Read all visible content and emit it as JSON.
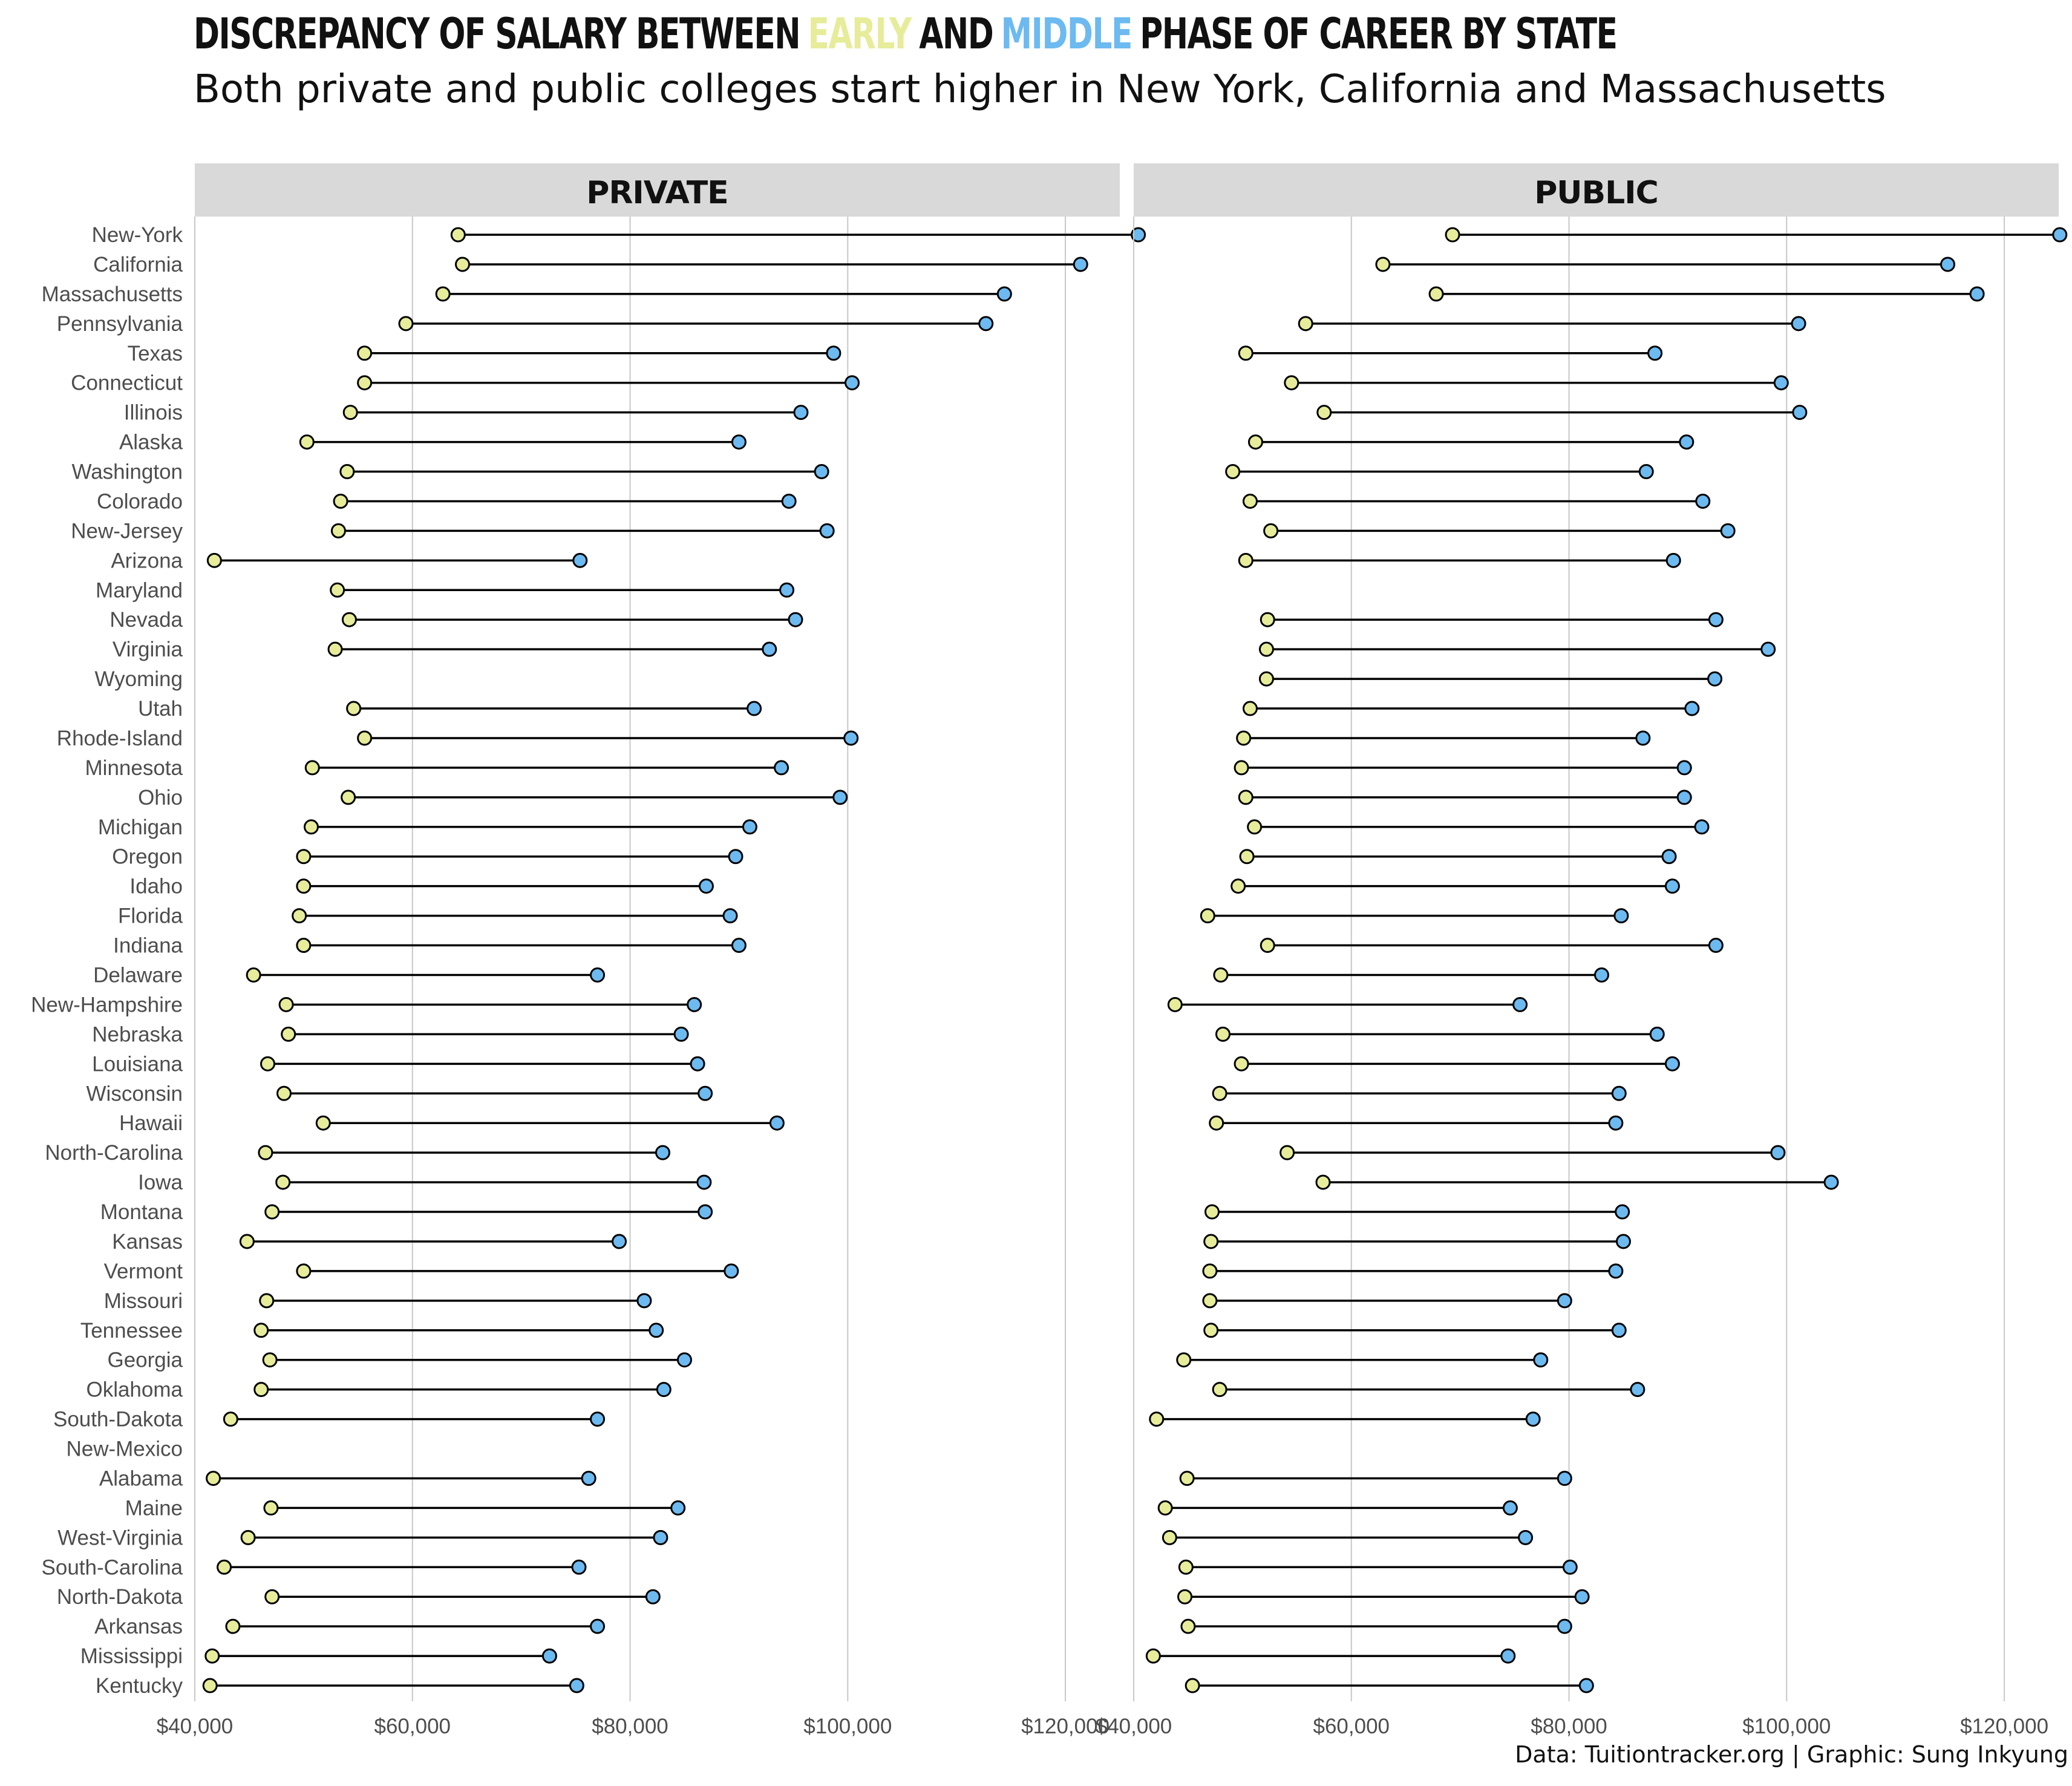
{
  "title_segments": [
    {
      "text": "DISCREPANCY OF SALARY BETWEEN",
      "color": "#111111"
    },
    {
      "text": "EARLY",
      "color": "#e6ec9a"
    },
    {
      "text": "AND",
      "color": "#111111"
    },
    {
      "text": "MIDDLE",
      "color": "#6cbaf0"
    },
    {
      "text": "PHASE OF CAREER BY STATE",
      "color": "#111111"
    }
  ],
  "subtitle": "Both private and public colleges start higher in New York, California and Massachusetts",
  "caption": "Data: Tuitiontracker.org | Graphic: Sung Inkyung",
  "colors": {
    "early": "#e6ec9a",
    "middle": "#6cbaf0",
    "line": "#000000",
    "panel_header": "#d9d9d9",
    "grid": "#c8c8c8",
    "axis_text": "#4d4d4d"
  },
  "chart_data": {
    "type": "dumbbell",
    "states": [
      "New-York",
      "California",
      "Massachusetts",
      "Pennsylvania",
      "Texas",
      "Connecticut",
      "Illinois",
      "Alaska",
      "Washington",
      "Colorado",
      "New-Jersey",
      "Arizona",
      "Maryland",
      "Nevada",
      "Virginia",
      "Wyoming",
      "Utah",
      "Rhode-Island",
      "Minnesota",
      "Ohio",
      "Michigan",
      "Oregon",
      "Idaho",
      "Florida",
      "Indiana",
      "Delaware",
      "New-Hampshire",
      "Nebraska",
      "Louisiana",
      "Wisconsin",
      "Hawaii",
      "North-Carolina",
      "Iowa",
      "Montana",
      "Kansas",
      "Vermont",
      "Missouri",
      "Tennessee",
      "Georgia",
      "Oklahoma",
      "South-Dakota",
      "New-Mexico",
      "Alabama",
      "Maine",
      "West-Virginia",
      "South-Carolina",
      "North-Dakota",
      "Arkansas",
      "Mississippi",
      "Kentucky"
    ],
    "xlim": [
      40000,
      125000
    ],
    "x_ticks": [
      40000,
      60000,
      80000,
      100000,
      120000
    ],
    "x_tick_labels": [
      "$40,000",
      "$60,000",
      "$80,000",
      "$100,000",
      "$120,000"
    ],
    "grid": true,
    "panels": [
      {
        "name": "PRIVATE",
        "early": [
          64200,
          64600,
          62800,
          59400,
          55600,
          55600,
          54300,
          50300,
          54000,
          53400,
          53200,
          41800,
          53100,
          54200,
          52900,
          null,
          54600,
          55600,
          50800,
          54100,
          50700,
          50000,
          50000,
          49600,
          50000,
          45400,
          48400,
          48600,
          46700,
          48200,
          51800,
          46500,
          48100,
          47100,
          44800,
          50000,
          46600,
          46100,
          46900,
          46100,
          43300,
          null,
          41700,
          47000,
          44900,
          42700,
          47100,
          43500,
          41600,
          41400
        ],
        "middle": [
          126700,
          121400,
          114400,
          112700,
          98700,
          100400,
          95700,
          90000,
          97600,
          94600,
          98100,
          75400,
          94400,
          95200,
          92800,
          null,
          91400,
          100300,
          93900,
          99300,
          91000,
          89700,
          87000,
          89200,
          90000,
          77000,
          85900,
          84700,
          86200,
          86900,
          93500,
          83000,
          86800,
          86900,
          79000,
          89300,
          81300,
          82400,
          85000,
          83100,
          77000,
          null,
          76200,
          84400,
          82800,
          75300,
          82100,
          77000,
          72600,
          75100
        ]
      },
      {
        "name": "PUBLIC",
        "early": [
          69300,
          62900,
          67800,
          55800,
          50300,
          54500,
          57500,
          51200,
          49100,
          50700,
          52600,
          50300,
          null,
          52300,
          52200,
          52200,
          50700,
          50100,
          49900,
          50300,
          51100,
          50400,
          49600,
          46800,
          52300,
          48000,
          43800,
          48200,
          49900,
          47900,
          47600,
          54100,
          57400,
          47200,
          47100,
          47000,
          47000,
          47100,
          44600,
          47900,
          42100,
          null,
          44900,
          42900,
          43300,
          44800,
          44700,
          45000,
          41800,
          45400
        ],
        "middle": [
          125100,
          114800,
          117500,
          101100,
          87900,
          99500,
          101200,
          90800,
          87100,
          92300,
          94600,
          89600,
          null,
          93500,
          98300,
          93400,
          91300,
          86800,
          90600,
          90600,
          92200,
          89200,
          89500,
          84800,
          93500,
          83000,
          75500,
          88100,
          89500,
          84600,
          84300,
          99200,
          104100,
          84900,
          85000,
          84300,
          79600,
          84600,
          77400,
          86300,
          76700,
          null,
          79600,
          74600,
          76000,
          80100,
          81200,
          79600,
          74400,
          81600
        ]
      }
    ]
  }
}
